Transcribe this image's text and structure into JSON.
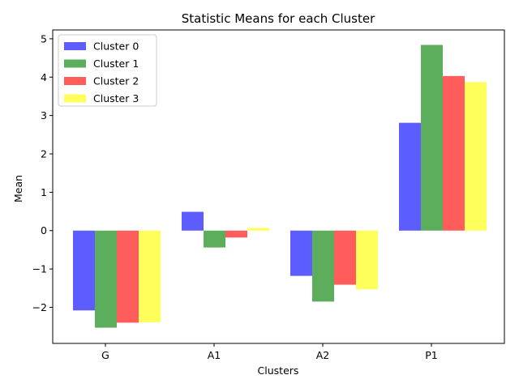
{
  "chart_data": {
    "type": "bar",
    "title": "Statistic Means for each Cluster",
    "xlabel": "Clusters",
    "ylabel": "Mean",
    "categories": [
      "G",
      "A1",
      "A2",
      "P1"
    ],
    "series": [
      {
        "name": "Cluster 0",
        "color": "#3333ff",
        "values": [
          -2.08,
          0.49,
          -1.18,
          2.81
        ]
      },
      {
        "name": "Cluster 1",
        "color": "#339933",
        "values": [
          -2.53,
          -0.44,
          -1.85,
          4.84
        ]
      },
      {
        "name": "Cluster 2",
        "color": "#ff3333",
        "values": [
          -2.4,
          -0.18,
          -1.41,
          4.03
        ]
      },
      {
        "name": "Cluster 3",
        "color": "#ffff33",
        "values": [
          -2.39,
          0.07,
          -1.53,
          3.87
        ]
      }
    ],
    "ylim": [
      -2.94,
      5.23
    ],
    "yticks": [
      -2,
      -1,
      0,
      1,
      2,
      3,
      4,
      5
    ],
    "ytick_labels": [
      "−2",
      "−1",
      "0",
      "1",
      "2",
      "3",
      "4",
      "5"
    ],
    "grid": false,
    "legend_position": "upper-left"
  }
}
